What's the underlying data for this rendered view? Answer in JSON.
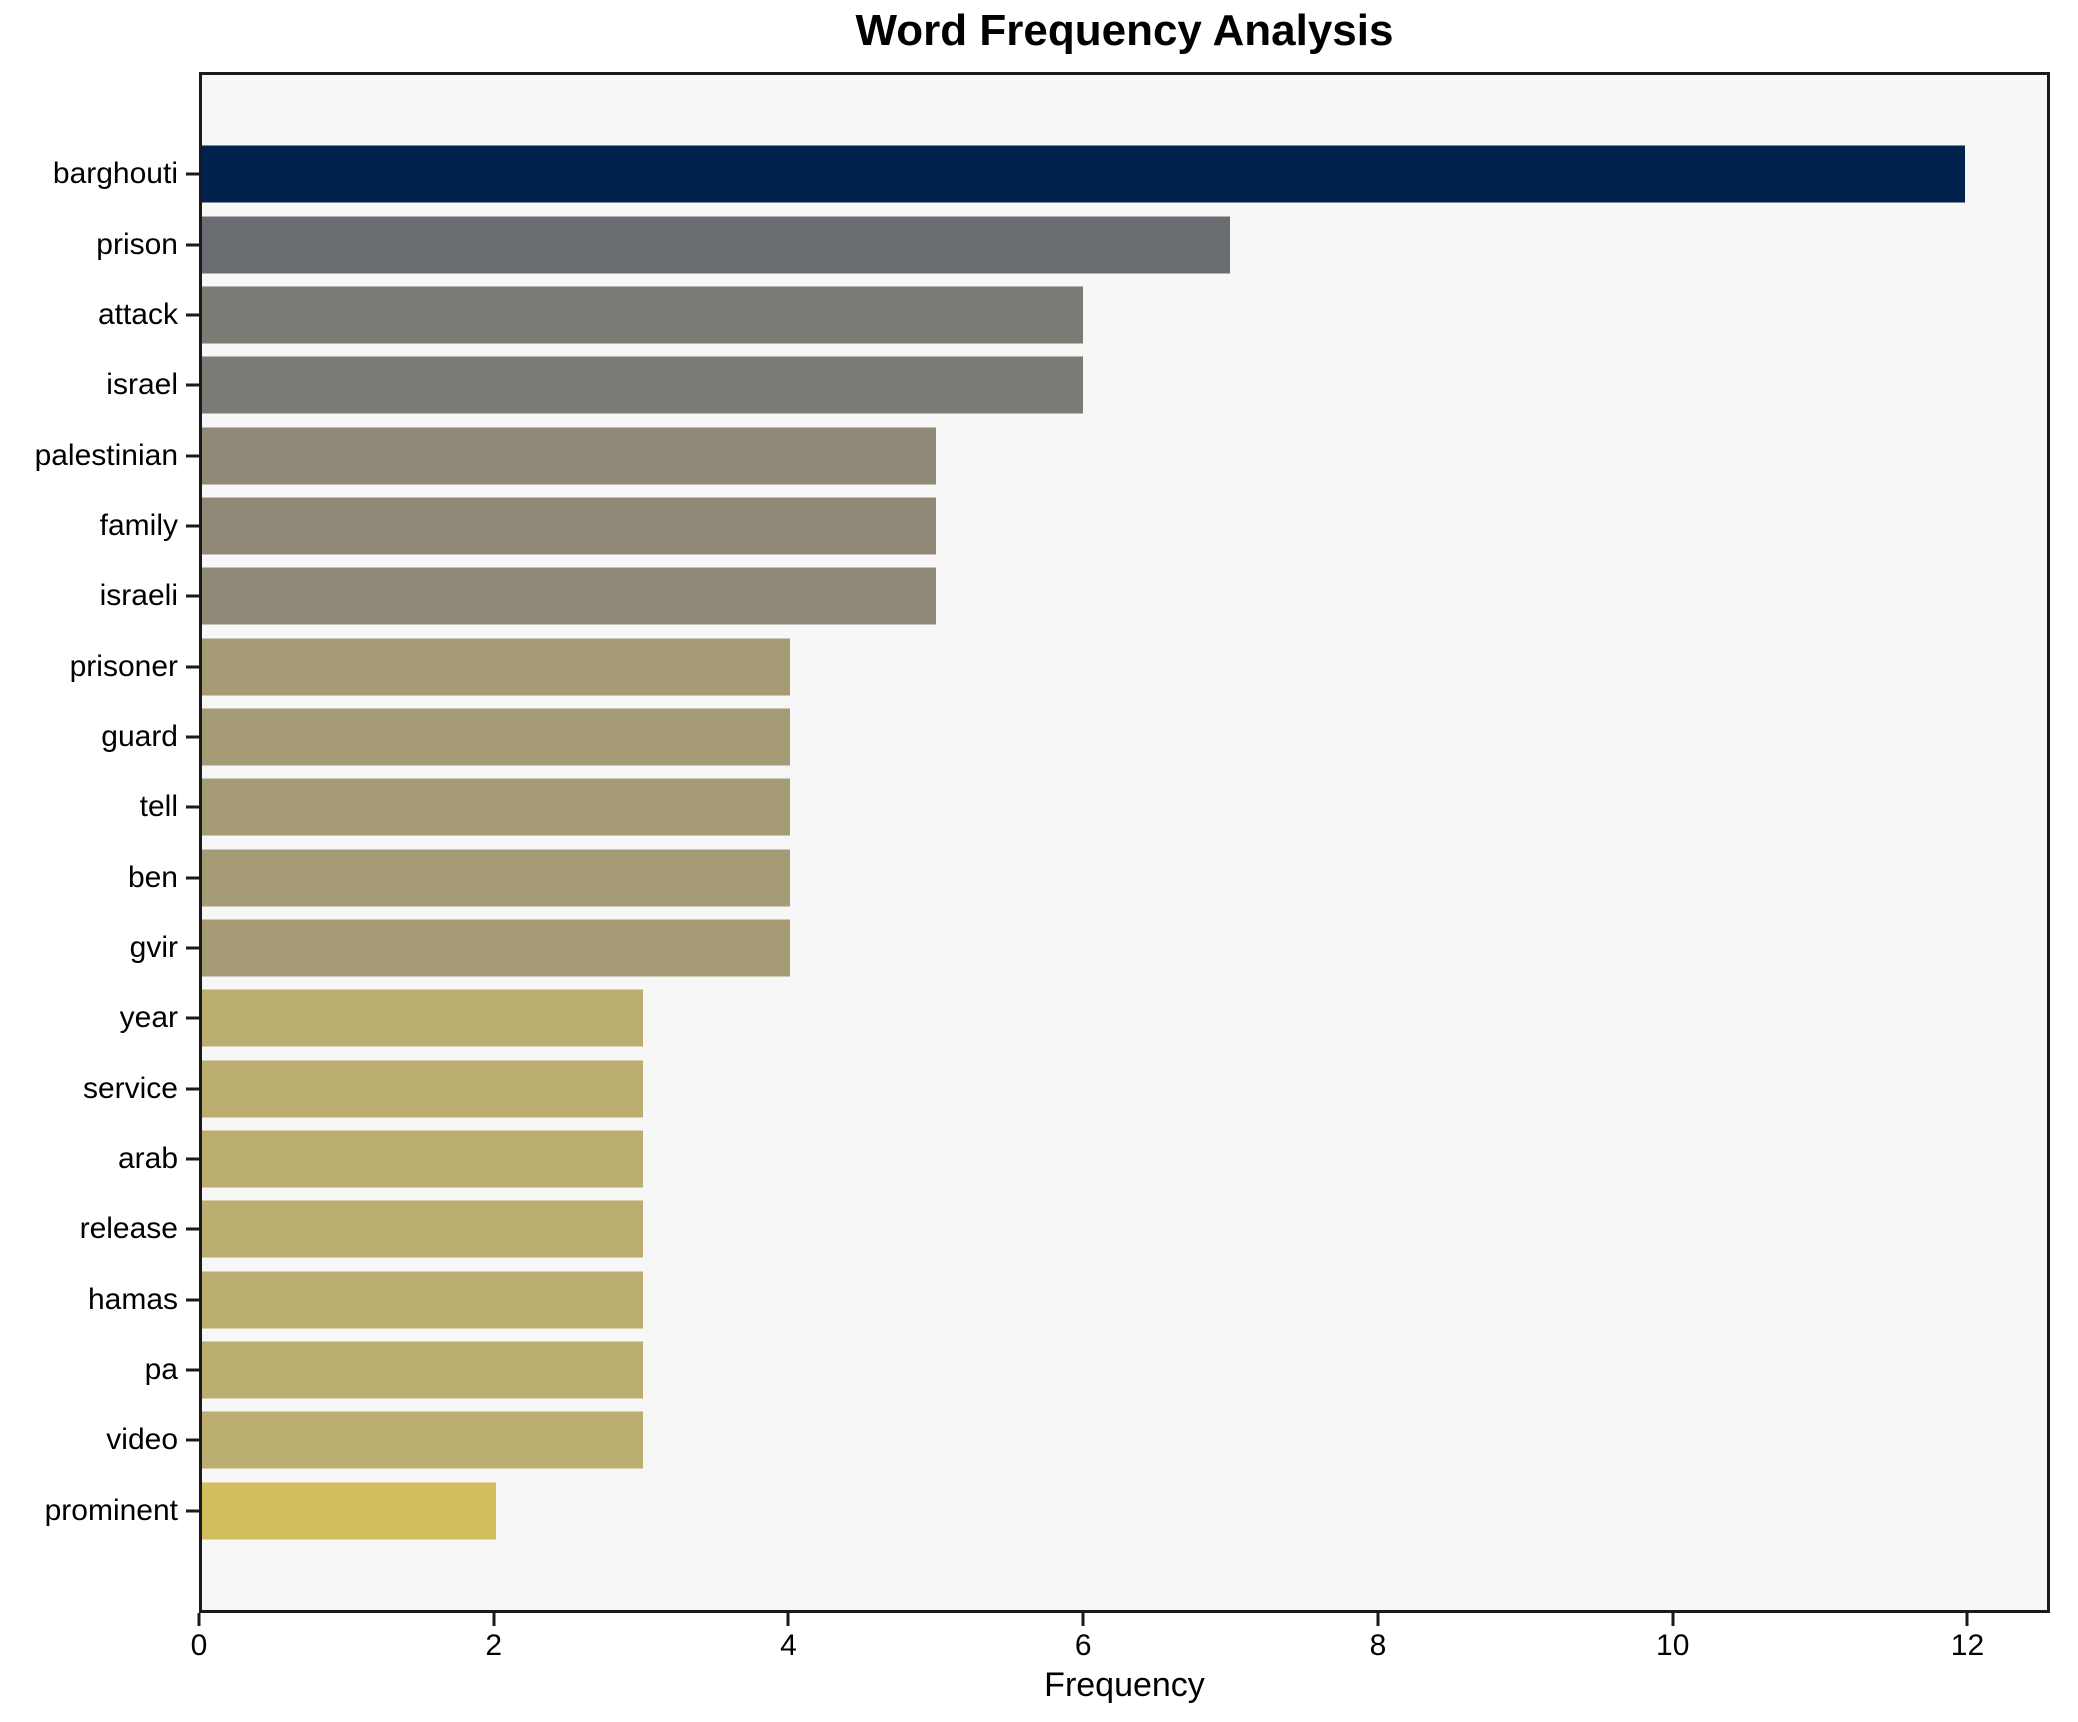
{
  "title": "Word Frequency Analysis",
  "x_axis": {
    "label": "Frequency",
    "ticks": [
      0,
      2,
      4,
      6,
      8,
      10,
      12
    ],
    "max_units": 12.56
  },
  "colors": {
    "plot_background": "#f7f7f7",
    "figure_background": "#ffffff",
    "spine": "#1a1a1a",
    "text": "#000000"
  },
  "chart_data": {
    "type": "bar",
    "orientation": "horizontal",
    "title": "Word Frequency Analysis",
    "xlabel": "Frequency",
    "ylabel": "",
    "xlim": [
      0,
      12.56
    ],
    "grid": false,
    "legend": false,
    "categories": [
      "barghouti",
      "prison",
      "attack",
      "israel",
      "palestinian",
      "family",
      "israeli",
      "prisoner",
      "guard",
      "tell",
      "ben",
      "gvir",
      "year",
      "service",
      "arab",
      "release",
      "hamas",
      "pa",
      "video",
      "prominent"
    ],
    "values": [
      12,
      7,
      6,
      6,
      5,
      5,
      5,
      4,
      4,
      4,
      4,
      4,
      3,
      3,
      3,
      3,
      3,
      3,
      3,
      2
    ],
    "bar_colors": [
      "#00224d",
      "#6a6d72",
      "#7b7a74",
      "#7b7a74",
      "#908977",
      "#908977",
      "#908977",
      "#a49b74",
      "#a49b74",
      "#a49b74",
      "#a49b74",
      "#a49b74",
      "#baad6f",
      "#baad6f",
      "#baad6f",
      "#baad6f",
      "#baad6f",
      "#baad6f",
      "#baad6f",
      "#d3be5f"
    ]
  }
}
